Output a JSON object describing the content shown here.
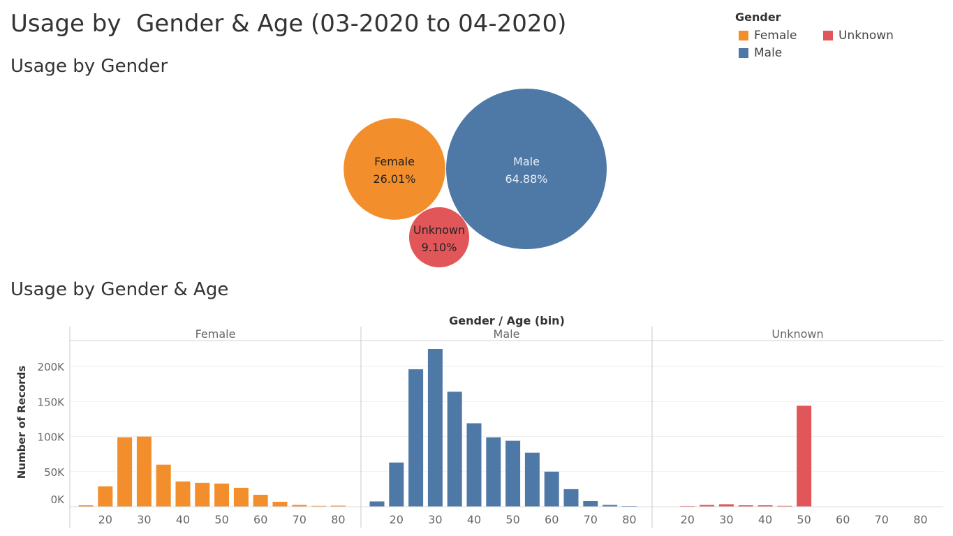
{
  "title": "Usage by  Gender & Age (03-2020 to 04-2020)",
  "colors": {
    "Female": "#f28e2b",
    "Male": "#4e79a7",
    "Unknown": "#e15759"
  },
  "legend": {
    "title": "Gender",
    "items": [
      {
        "label": "Female",
        "color": "#f28e2b"
      },
      {
        "label": "Unknown",
        "color": "#e15759"
      },
      {
        "label": "Male",
        "color": "#4e79a7"
      }
    ]
  },
  "chart_data": [
    {
      "type": "bubble",
      "title": "Usage by Gender",
      "bubbles": [
        {
          "label": "Female",
          "value_text": "26.01%",
          "value": 26.01
        },
        {
          "label": "Male",
          "value_text": "64.88%",
          "value": 64.88
        },
        {
          "label": "Unknown",
          "value_text": "9.10%",
          "value": 9.1
        }
      ]
    },
    {
      "type": "bar",
      "title": "Usage by Gender & Age",
      "header": "Gender  /  Age (bin)",
      "ylabel": "Number of Records",
      "ylim": [
        0,
        225000
      ],
      "yticks": [
        0,
        50000,
        100000,
        150000,
        200000
      ],
      "ytick_labels": [
        "0K",
        "50K",
        "100K",
        "150K",
        "200K"
      ],
      "x_bins": [
        15,
        20,
        25,
        30,
        35,
        40,
        45,
        50,
        55,
        60,
        65,
        70,
        75,
        80
      ],
      "x_tick_labels": [
        "20",
        "30",
        "40",
        "50",
        "60",
        "70",
        "80"
      ],
      "series": [
        {
          "name": "Female",
          "values": [
            2000,
            29000,
            99000,
            100000,
            60000,
            36000,
            34000,
            33000,
            27000,
            17000,
            7000,
            2500,
            1200,
            1500
          ]
        },
        {
          "name": "Male",
          "values": [
            7500,
            63000,
            196000,
            225000,
            164000,
            119000,
            99000,
            94000,
            77000,
            50000,
            25000,
            8000,
            2500,
            1000
          ]
        },
        {
          "name": "Unknown",
          "values": [
            0,
            500,
            2500,
            3500,
            2000,
            2000,
            1200,
            144000,
            0,
            0,
            0,
            0,
            0,
            0
          ]
        }
      ]
    }
  ]
}
